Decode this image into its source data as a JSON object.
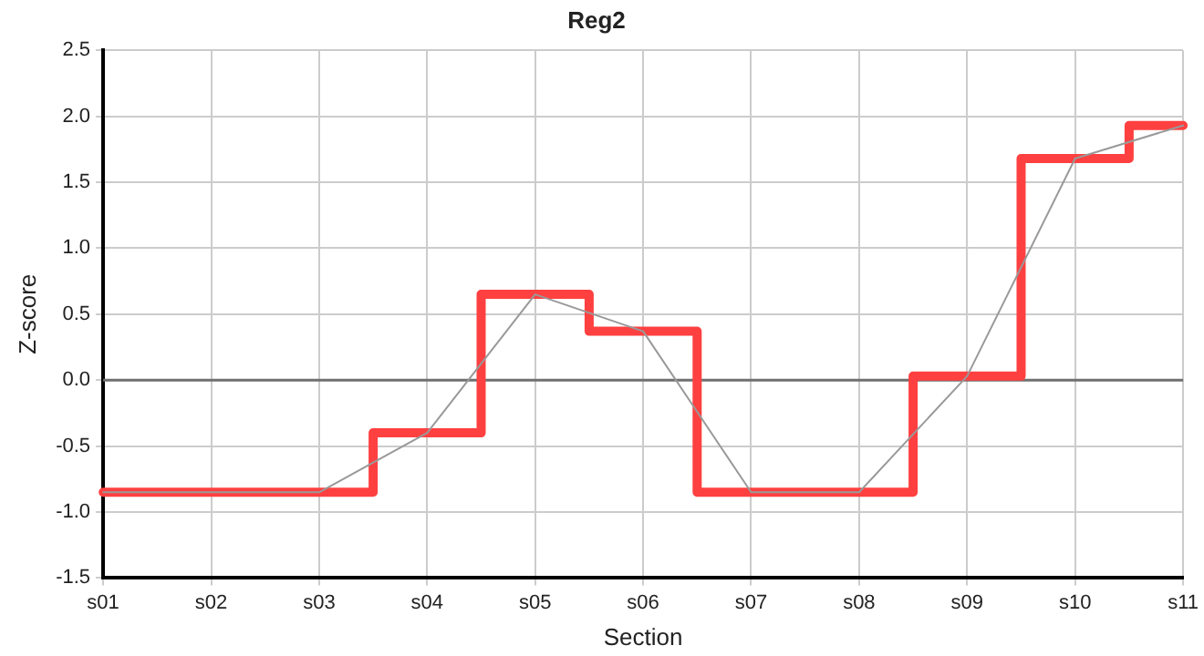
{
  "chart_data": {
    "type": "step",
    "title": "Reg2",
    "xlabel": "Section",
    "ylabel": "Z-score",
    "categories": [
      "s01",
      "s02",
      "s03",
      "s04",
      "s05",
      "s06",
      "s07",
      "s08",
      "s09",
      "s10",
      "s11"
    ],
    "series": [
      {
        "type": "step",
        "color": "#ff4040",
        "values": [
          -0.85,
          -0.85,
          -0.85,
          -0.4,
          0.65,
          0.37,
          -0.85,
          -0.85,
          0.03,
          1.68,
          1.93
        ]
      },
      {
        "type": "line",
        "color": "#999999",
        "values": [
          -0.85,
          -0.85,
          -0.85,
          -0.4,
          0.65,
          0.37,
          -0.85,
          -0.85,
          0.03,
          1.68,
          1.93
        ]
      }
    ],
    "ylim": [
      -1.5,
      2.5
    ],
    "yticks": [
      {
        "value": -1.5,
        "label": "-1.5"
      },
      {
        "value": -1.0,
        "label": "-1.0"
      },
      {
        "value": -0.5,
        "label": "-0.5"
      },
      {
        "value": 0,
        "label": "0.0"
      },
      {
        "value": 0.5,
        "label": "0.5"
      },
      {
        "value": 1.0,
        "label": "1.0"
      },
      {
        "value": 1.5,
        "label": "1.5"
      },
      {
        "value": 2.0,
        "label": "2.0"
      },
      {
        "value": 2.5,
        "label": "2.5"
      }
    ],
    "ref_lines": [
      {
        "axis": "y",
        "value": 0,
        "color": "#707070"
      }
    ],
    "grid": true,
    "legend": false,
    "marker": "none",
    "line_style": "solid"
  }
}
